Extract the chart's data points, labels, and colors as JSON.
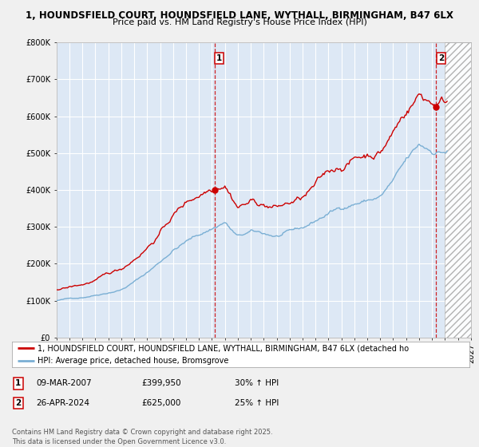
{
  "title_line1": "1, HOUNDSFIELD COURT, HOUNDSFIELD LANE, WYTHALL, BIRMINGHAM, B47 6LX",
  "title_line2": "Price paid vs. HM Land Registry's House Price Index (HPI)",
  "ylim": [
    0,
    800000
  ],
  "yticks": [
    0,
    100000,
    200000,
    300000,
    400000,
    500000,
    600000,
    700000,
    800000
  ],
  "ytick_labels": [
    "£0",
    "£100K",
    "£200K",
    "£300K",
    "£400K",
    "£500K",
    "£600K",
    "£700K",
    "£800K"
  ],
  "background_color": "#f0f0f0",
  "plot_bg_color": "#dde8f5",
  "grid_color": "#ffffff",
  "line1_color": "#cc0000",
  "line2_color": "#7aafd4",
  "vline_color": "#cc0000",
  "hatch_start": 2025.0,
  "hatch_color": "#d8d8d8",
  "sale1_year": 2007.19,
  "sale1_price": 399950,
  "sale2_year": 2024.32,
  "sale2_price": 625000,
  "sale1_label": "1",
  "sale2_label": "2",
  "legend_line1": "1, HOUNDSFIELD COURT, HOUNDSFIELD LANE, WYTHALL, BIRMINGHAM, B47 6LX (detached ho",
  "legend_line2": "HPI: Average price, detached house, Bromsgrove",
  "footer": "Contains HM Land Registry data © Crown copyright and database right 2025.\nThis data is licensed under the Open Government Licence v3.0.",
  "xmin": 1995,
  "xmax": 2027,
  "title_fontsize": 8.5,
  "tick_fontsize": 7,
  "legend_fontsize": 7,
  "footer_fontsize": 6,
  "ann1_date": "09-MAR-2007",
  "ann1_price": "£399,950",
  "ann1_hpi": "30% ↑ HPI",
  "ann2_date": "26-APR-2024",
  "ann2_price": "£625,000",
  "ann2_hpi": "25% ↑ HPI"
}
